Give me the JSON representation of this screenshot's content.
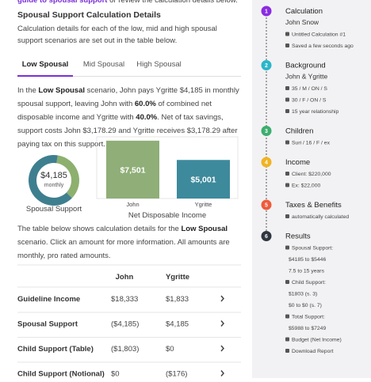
{
  "top_note": {
    "runs": [
      {
        "t": "guide to spousal support",
        "b": true,
        "link": true
      },
      {
        "t": " or review the calculation details below."
      }
    ]
  },
  "details": {
    "title": "Spousal Support Calculation Details",
    "description": "Calculation details for each of the low, mid and high spousal support scenarios are set out in the table below."
  },
  "tabs": {
    "items": [
      "Low Spousal",
      "Mid Spousal",
      "High Spousal"
    ],
    "active": 0
  },
  "scenario": {
    "runs": [
      {
        "t": "In the "
      },
      {
        "t": "Low Spousal",
        "b": true
      },
      {
        "t": " scenario, John pays Ygritte $4,185 in monthly spousal support, leaving John with "
      },
      {
        "t": "60.0%",
        "b": true
      },
      {
        "t": " of combined net disposable income and Ygritte with "
      },
      {
        "t": "40.0%",
        "b": true
      },
      {
        "t": ".  Net of tax savings, support costs John $3,178.29 and  Ygritte receives $3,178.29 after paying tax on this support."
      }
    ]
  },
  "chart_data": [
    {
      "type": "donut",
      "center_label": "$4,185",
      "center_sublabel": "monthly",
      "label": "Spousal Support",
      "values": [
        35,
        65
      ],
      "colors": [
        "#8db06f",
        "#3e7f8f"
      ]
    },
    {
      "type": "bar",
      "title": "Net Disposable Income",
      "categories": [
        "John",
        "Ygritte"
      ],
      "values": [
        7501,
        5001
      ],
      "value_labels": [
        "$7,501",
        "$5,001"
      ],
      "colors": [
        "#8fae78",
        "#3d8a9c"
      ],
      "ylim": [
        0,
        8000
      ]
    }
  ],
  "table_note": {
    "runs": [
      {
        "t": "The table below shows calculation details for the "
      },
      {
        "t": "Low Spousal",
        "b": true
      },
      {
        "t": " scenario. Click an amount for more information. All amounts are monthly, pro rated amounts."
      }
    ]
  },
  "table": {
    "columns": [
      "John",
      "Ygritte"
    ],
    "rows": [
      [
        "Guideline Income",
        "$18,333",
        "$1,833"
      ],
      [
        "Spousal Support",
        "($4,185)",
        "$4,185"
      ],
      [
        "Child Support (Table)",
        "($1,803)",
        "$0"
      ],
      [
        "Child Support (Notional)",
        "$0",
        "($176)"
      ]
    ]
  },
  "steps": [
    {
      "number": "1",
      "title": "Calculation",
      "color": "#8a2be2",
      "lines": [
        {
          "text": "John Snow",
          "main": true
        },
        {
          "text": "Untitled Calculation #1",
          "icon": true
        },
        {
          "text": "Saved a few seconds ago",
          "icon": true
        }
      ]
    },
    {
      "number": "2",
      "title": "Background",
      "color": "#2bb6c9",
      "lines": [
        {
          "text": "John & Ygritte",
          "main": true
        },
        {
          "text": "35 / M / ON / S",
          "icon": true
        },
        {
          "text": "30 / F / ON / S",
          "icon": true
        },
        {
          "text": "15 year relationship",
          "icon": true
        }
      ]
    },
    {
      "number": "3",
      "title": "Children",
      "color": "#3cae6e",
      "lines": [
        {
          "text": "Suri / 16 / F / ex",
          "icon": true
        }
      ]
    },
    {
      "number": "4",
      "title": "Income",
      "color": "#f0b323",
      "lines": [
        {
          "text": "Client: $220,000",
          "icon": true
        },
        {
          "text": "Ex: $22,000",
          "icon": true
        }
      ]
    },
    {
      "number": "5",
      "title": "Taxes & Benefits",
      "color": "#ee5b3b",
      "lines": [
        {
          "text": "automatically calculated",
          "icon": true
        }
      ]
    },
    {
      "number": "6",
      "title": "Results",
      "color": "#2f3640",
      "lines": [
        {
          "text": "Spousal Support:",
          "icon": true
        },
        {
          "text": "$4185 to $5446"
        },
        {
          "text": "7.5 to 15 years"
        },
        {
          "text": "Child Support:",
          "icon": true
        },
        {
          "text": "$1803 (s. 3)"
        },
        {
          "text": "$0 to $0 (s. 7)"
        },
        {
          "text": "Total Support:",
          "icon": true
        },
        {
          "text": "$5988 to $7249"
        },
        {
          "text": "Budget (Net Income)",
          "icon": true
        },
        {
          "text": "Download Report",
          "icon": true
        }
      ]
    }
  ]
}
